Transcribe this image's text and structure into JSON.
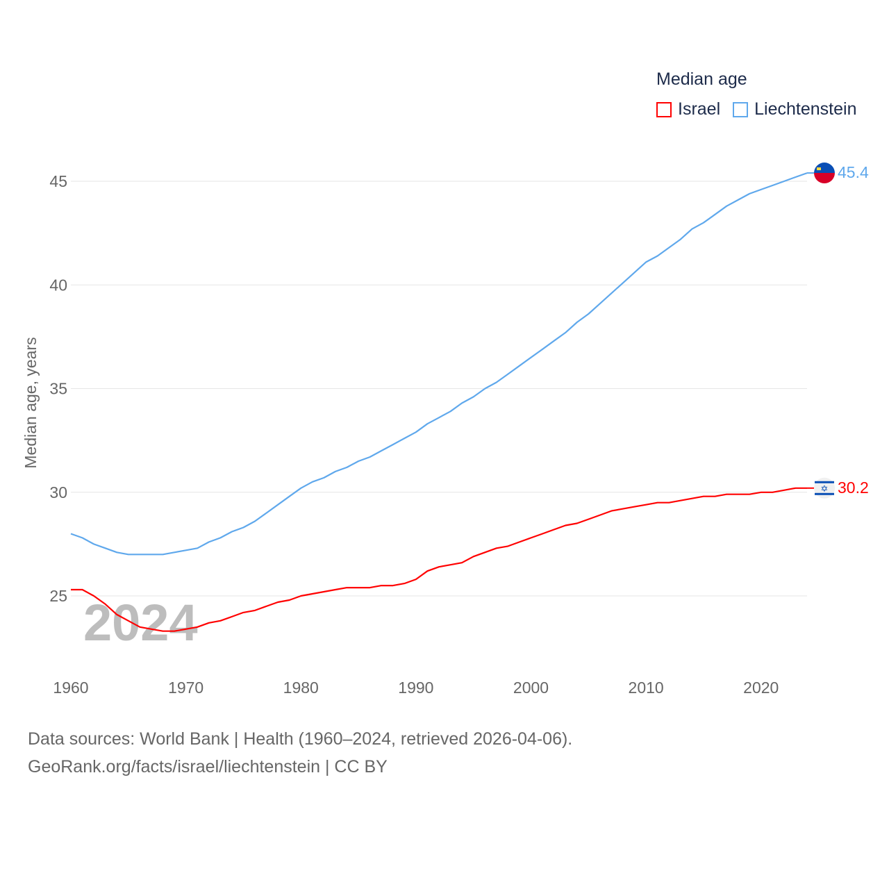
{
  "chart_data": {
    "type": "line",
    "title": "Median age",
    "xlabel": "",
    "ylabel": "Median age, years",
    "xlim": [
      1960,
      2024
    ],
    "ylim": [
      22,
      47
    ],
    "yticks": [
      25,
      30,
      35,
      40,
      45
    ],
    "xticks": [
      1960,
      1970,
      1980,
      1990,
      2000,
      2010,
      2020
    ],
    "grid": true,
    "legend_position": "top-right",
    "watermark_year": "2024",
    "x_start": 1960,
    "series": [
      {
        "name": "Israel",
        "color": "#ff0000",
        "end_label": "30.2",
        "flag": "israel-flag",
        "values": [
          25.3,
          25.3,
          25.0,
          24.6,
          24.1,
          23.8,
          23.5,
          23.4,
          23.3,
          23.3,
          23.4,
          23.5,
          23.7,
          23.8,
          24.0,
          24.2,
          24.3,
          24.5,
          24.7,
          24.8,
          25.0,
          25.1,
          25.2,
          25.3,
          25.4,
          25.4,
          25.4,
          25.5,
          25.5,
          25.6,
          25.8,
          26.2,
          26.4,
          26.5,
          26.6,
          26.9,
          27.1,
          27.3,
          27.4,
          27.6,
          27.8,
          28.0,
          28.2,
          28.4,
          28.5,
          28.7,
          28.9,
          29.1,
          29.2,
          29.3,
          29.4,
          29.5,
          29.5,
          29.6,
          29.7,
          29.8,
          29.8,
          29.9,
          29.9,
          29.9,
          30.0,
          30.0,
          30.1,
          30.2,
          30.2
        ]
      },
      {
        "name": "Liechtenstein",
        "color": "#5fa8ec",
        "end_label": "45.4",
        "flag": "liechtenstein-flag",
        "values": [
          28.0,
          27.8,
          27.5,
          27.3,
          27.1,
          27.0,
          27.0,
          27.0,
          27.0,
          27.1,
          27.2,
          27.3,
          27.6,
          27.8,
          28.1,
          28.3,
          28.6,
          29.0,
          29.4,
          29.8,
          30.2,
          30.5,
          30.7,
          31.0,
          31.2,
          31.5,
          31.7,
          32.0,
          32.3,
          32.6,
          32.9,
          33.3,
          33.6,
          33.9,
          34.3,
          34.6,
          35.0,
          35.3,
          35.7,
          36.1,
          36.5,
          36.9,
          37.3,
          37.7,
          38.2,
          38.6,
          39.1,
          39.6,
          40.1,
          40.6,
          41.1,
          41.4,
          41.8,
          42.2,
          42.7,
          43.0,
          43.4,
          43.8,
          44.1,
          44.4,
          44.6,
          44.8,
          45.0,
          45.2,
          45.4
        ]
      }
    ]
  },
  "footer": {
    "line1": "Data sources: World Bank | Health (1960–2024, retrieved 2026-04-06).",
    "line2": "GeoRank.org/facts/israel/liechtenstein | CC BY"
  }
}
